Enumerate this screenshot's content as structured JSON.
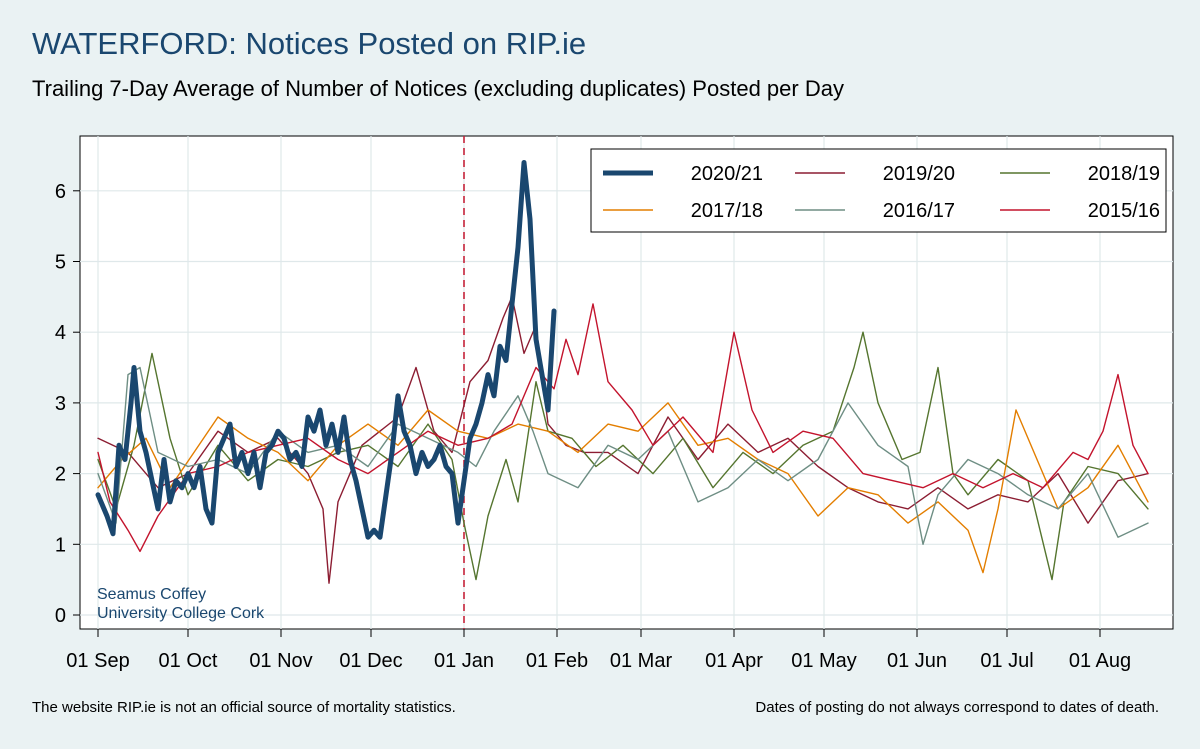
{
  "header": {
    "title": "WATERFORD: Notices Posted on RIP.ie",
    "subtitle": "Trailing 7-Day Average of Number of Notices (excluding duplicates) Posted per Day"
  },
  "footer": {
    "left": "The website RIP.ie is not an official source of mortality statistics.",
    "right": "Dates of posting do not always correspond to dates of death."
  },
  "colors": {
    "background": "#eaf2f3",
    "plot_background": "#ffffff",
    "grid": "#dfe8ea",
    "reference_line": "#c3142d"
  },
  "chart_data": {
    "type": "line",
    "title": "WATERFORD: Notices Posted on RIP.ie",
    "subtitle": "Trailing 7-Day Average of Number of Notices (excluding duplicates) Posted per Day",
    "xlabel": "",
    "ylabel": "",
    "ylim": [
      0,
      6.6
    ],
    "yticks": [
      0,
      1,
      2,
      3,
      4,
      5,
      6
    ],
    "x_tick_labels": [
      "01 Sep",
      "01 Oct",
      "01 Nov",
      "01 Dec",
      "01 Jan",
      "01 Feb",
      "01 Mar",
      "01 Apr",
      "01 May",
      "01 Jun",
      "01 Jul",
      "01 Aug"
    ],
    "x_tick_days": [
      0,
      30,
      61,
      91,
      122,
      153,
      181,
      212,
      242,
      273,
      303,
      334
    ],
    "x_range_days": [
      0,
      354
    ],
    "grid": true,
    "reference_line": {
      "day": 122,
      "style": "dashed"
    },
    "legend": {
      "placement": "top-right",
      "columns": 3
    },
    "annotation": [
      "Seamus Coffey",
      "University College Cork"
    ],
    "series": [
      {
        "name": "2020/21",
        "color": "#1a476f",
        "emphasis": true,
        "points": [
          [
            0,
            1.7
          ],
          [
            3,
            1.4
          ],
          [
            5,
            1.15
          ],
          [
            7,
            2.4
          ],
          [
            9,
            2.2
          ],
          [
            11,
            3.0
          ],
          [
            12,
            3.5
          ],
          [
            14,
            2.6
          ],
          [
            16,
            2.3
          ],
          [
            18,
            1.9
          ],
          [
            20,
            1.5
          ],
          [
            22,
            2.2
          ],
          [
            24,
            1.6
          ],
          [
            26,
            1.9
          ],
          [
            28,
            1.8
          ],
          [
            30,
            2.0
          ],
          [
            32,
            1.8
          ],
          [
            34,
            2.1
          ],
          [
            36,
            1.5
          ],
          [
            38,
            1.3
          ],
          [
            40,
            2.3
          ],
          [
            42,
            2.5
          ],
          [
            44,
            2.7
          ],
          [
            46,
            2.1
          ],
          [
            48,
            2.3
          ],
          [
            50,
            2.0
          ],
          [
            52,
            2.3
          ],
          [
            54,
            1.8
          ],
          [
            56,
            2.3
          ],
          [
            58,
            2.4
          ],
          [
            60,
            2.6
          ],
          [
            62,
            2.5
          ],
          [
            64,
            2.2
          ],
          [
            66,
            2.3
          ],
          [
            68,
            2.1
          ],
          [
            70,
            2.8
          ],
          [
            72,
            2.6
          ],
          [
            74,
            2.9
          ],
          [
            76,
            2.4
          ],
          [
            78,
            2.7
          ],
          [
            80,
            2.3
          ],
          [
            82,
            2.8
          ],
          [
            84,
            2.2
          ],
          [
            86,
            1.9
          ],
          [
            88,
            1.5
          ],
          [
            90,
            1.1
          ],
          [
            92,
            1.2
          ],
          [
            94,
            1.1
          ],
          [
            96,
            1.7
          ],
          [
            98,
            2.3
          ],
          [
            100,
            3.1
          ],
          [
            102,
            2.6
          ],
          [
            104,
            2.4
          ],
          [
            106,
            2.0
          ],
          [
            108,
            2.3
          ],
          [
            110,
            2.1
          ],
          [
            112,
            2.2
          ],
          [
            114,
            2.4
          ],
          [
            116,
            2.1
          ],
          [
            118,
            2.0
          ],
          [
            120,
            1.3
          ],
          [
            122,
            1.9
          ],
          [
            124,
            2.5
          ],
          [
            126,
            2.7
          ],
          [
            128,
            3.0
          ],
          [
            130,
            3.4
          ],
          [
            132,
            3.1
          ],
          [
            134,
            3.8
          ],
          [
            136,
            3.6
          ],
          [
            138,
            4.4
          ],
          [
            140,
            5.2
          ],
          [
            142,
            6.4
          ],
          [
            144,
            5.6
          ],
          [
            146,
            3.9
          ],
          [
            148,
            3.4
          ],
          [
            150,
            2.9
          ],
          [
            152,
            4.3
          ]
        ]
      },
      {
        "name": "2019/20",
        "color": "#8c1d32",
        "points": [
          [
            0,
            2.5
          ],
          [
            10,
            2.3
          ],
          [
            20,
            1.8
          ],
          [
            30,
            2.0
          ],
          [
            40,
            2.6
          ],
          [
            50,
            2.3
          ],
          [
            60,
            2.5
          ],
          [
            70,
            2.0
          ],
          [
            75,
            1.5
          ],
          [
            77,
            0.45
          ],
          [
            80,
            1.6
          ],
          [
            88,
            2.4
          ],
          [
            100,
            2.8
          ],
          [
            106,
            3.5
          ],
          [
            112,
            2.6
          ],
          [
            118,
            2.3
          ],
          [
            124,
            3.3
          ],
          [
            130,
            3.6
          ],
          [
            135,
            4.2
          ],
          [
            138,
            4.5
          ],
          [
            142,
            3.7
          ],
          [
            146,
            4.1
          ],
          [
            150,
            2.7
          ],
          [
            156,
            2.4
          ],
          [
            162,
            2.3
          ],
          [
            170,
            2.3
          ],
          [
            180,
            2.0
          ],
          [
            190,
            2.8
          ],
          [
            200,
            2.2
          ],
          [
            210,
            2.7
          ],
          [
            220,
            2.3
          ],
          [
            230,
            2.5
          ],
          [
            240,
            2.1
          ],
          [
            250,
            1.8
          ],
          [
            260,
            1.6
          ],
          [
            270,
            1.5
          ],
          [
            280,
            1.8
          ],
          [
            290,
            1.5
          ],
          [
            300,
            1.7
          ],
          [
            310,
            1.6
          ],
          [
            320,
            2.0
          ],
          [
            330,
            1.3
          ],
          [
            340,
            1.9
          ],
          [
            350,
            2.0
          ]
        ]
      },
      {
        "name": "2018/19",
        "color": "#55752f",
        "points": [
          [
            0,
            2.2
          ],
          [
            6,
            1.5
          ],
          [
            12,
            2.4
          ],
          [
            18,
            3.7
          ],
          [
            24,
            2.5
          ],
          [
            30,
            1.7
          ],
          [
            40,
            2.4
          ],
          [
            50,
            1.9
          ],
          [
            60,
            2.2
          ],
          [
            70,
            2.1
          ],
          [
            80,
            2.3
          ],
          [
            90,
            2.4
          ],
          [
            100,
            2.1
          ],
          [
            110,
            2.7
          ],
          [
            118,
            2.2
          ],
          [
            122,
            1.3
          ],
          [
            126,
            0.5
          ],
          [
            130,
            1.4
          ],
          [
            136,
            2.2
          ],
          [
            140,
            1.6
          ],
          [
            146,
            3.3
          ],
          [
            150,
            2.6
          ],
          [
            158,
            2.5
          ],
          [
            166,
            2.1
          ],
          [
            175,
            2.4
          ],
          [
            185,
            2.0
          ],
          [
            195,
            2.5
          ],
          [
            205,
            1.8
          ],
          [
            215,
            2.3
          ],
          [
            225,
            2.0
          ],
          [
            235,
            2.4
          ],
          [
            245,
            2.6
          ],
          [
            252,
            3.5
          ],
          [
            255,
            4.0
          ],
          [
            260,
            3.0
          ],
          [
            268,
            2.2
          ],
          [
            274,
            2.3
          ],
          [
            280,
            3.5
          ],
          [
            285,
            2.0
          ],
          [
            290,
            1.7
          ],
          [
            300,
            2.2
          ],
          [
            310,
            1.9
          ],
          [
            318,
            0.5
          ],
          [
            322,
            1.6
          ],
          [
            330,
            2.1
          ],
          [
            340,
            2.0
          ],
          [
            350,
            1.5
          ]
        ]
      },
      {
        "name": "2017/18",
        "color": "#e37e00",
        "points": [
          [
            0,
            1.8
          ],
          [
            8,
            2.2
          ],
          [
            16,
            2.5
          ],
          [
            24,
            1.8
          ],
          [
            32,
            2.3
          ],
          [
            40,
            2.8
          ],
          [
            50,
            2.5
          ],
          [
            60,
            2.3
          ],
          [
            70,
            1.9
          ],
          [
            80,
            2.4
          ],
          [
            90,
            2.7
          ],
          [
            100,
            2.4
          ],
          [
            110,
            2.9
          ],
          [
            120,
            2.6
          ],
          [
            130,
            2.5
          ],
          [
            140,
            2.7
          ],
          [
            150,
            2.6
          ],
          [
            160,
            2.3
          ],
          [
            170,
            2.7
          ],
          [
            180,
            2.6
          ],
          [
            190,
            3.0
          ],
          [
            200,
            2.4
          ],
          [
            210,
            2.5
          ],
          [
            220,
            2.2
          ],
          [
            230,
            2.0
          ],
          [
            240,
            1.4
          ],
          [
            250,
            1.8
          ],
          [
            260,
            1.7
          ],
          [
            270,
            1.3
          ],
          [
            280,
            1.6
          ],
          [
            290,
            1.2
          ],
          [
            295,
            0.6
          ],
          [
            300,
            1.5
          ],
          [
            306,
            2.9
          ],
          [
            312,
            2.3
          ],
          [
            320,
            1.5
          ],
          [
            330,
            1.8
          ],
          [
            340,
            2.4
          ],
          [
            350,
            1.6
          ]
        ]
      },
      {
        "name": "2016/17",
        "color": "#6e8e84",
        "points": [
          [
            0,
            2.0
          ],
          [
            6,
            1.3
          ],
          [
            10,
            3.4
          ],
          [
            14,
            3.5
          ],
          [
            20,
            2.3
          ],
          [
            30,
            2.1
          ],
          [
            40,
            2.2
          ],
          [
            50,
            2.0
          ],
          [
            60,
            2.6
          ],
          [
            70,
            2.3
          ],
          [
            80,
            2.4
          ],
          [
            90,
            2.1
          ],
          [
            100,
            2.7
          ],
          [
            110,
            2.5
          ],
          [
            120,
            2.3
          ],
          [
            126,
            2.1
          ],
          [
            132,
            2.6
          ],
          [
            140,
            3.1
          ],
          [
            145,
            2.6
          ],
          [
            150,
            2.0
          ],
          [
            160,
            1.8
          ],
          [
            170,
            2.4
          ],
          [
            180,
            2.2
          ],
          [
            190,
            2.6
          ],
          [
            200,
            1.6
          ],
          [
            210,
            1.8
          ],
          [
            220,
            2.2
          ],
          [
            230,
            1.9
          ],
          [
            240,
            2.2
          ],
          [
            250,
            3.0
          ],
          [
            260,
            2.4
          ],
          [
            270,
            2.1
          ],
          [
            275,
            1.0
          ],
          [
            280,
            1.7
          ],
          [
            290,
            2.2
          ],
          [
            300,
            2.0
          ],
          [
            310,
            1.7
          ],
          [
            320,
            1.5
          ],
          [
            330,
            2.0
          ],
          [
            340,
            1.1
          ],
          [
            350,
            1.3
          ]
        ]
      },
      {
        "name": "2015/16",
        "color": "#c3142d",
        "points": [
          [
            0,
            2.3
          ],
          [
            4,
            1.6
          ],
          [
            10,
            1.2
          ],
          [
            14,
            0.9
          ],
          [
            20,
            1.4
          ],
          [
            30,
            2.0
          ],
          [
            40,
            2.1
          ],
          [
            50,
            2.3
          ],
          [
            60,
            2.4
          ],
          [
            70,
            2.5
          ],
          [
            80,
            2.2
          ],
          [
            90,
            2.0
          ],
          [
            100,
            2.3
          ],
          [
            110,
            2.6
          ],
          [
            120,
            2.4
          ],
          [
            130,
            2.5
          ],
          [
            138,
            2.7
          ],
          [
            146,
            3.5
          ],
          [
            152,
            3.2
          ],
          [
            156,
            3.9
          ],
          [
            160,
            3.4
          ],
          [
            165,
            4.4
          ],
          [
            170,
            3.3
          ],
          [
            178,
            2.9
          ],
          [
            185,
            2.4
          ],
          [
            195,
            2.8
          ],
          [
            205,
            2.3
          ],
          [
            212,
            4.0
          ],
          [
            218,
            2.9
          ],
          [
            225,
            2.3
          ],
          [
            235,
            2.6
          ],
          [
            245,
            2.5
          ],
          [
            255,
            2.0
          ],
          [
            265,
            1.9
          ],
          [
            275,
            1.8
          ],
          [
            285,
            2.0
          ],
          [
            295,
            1.8
          ],
          [
            305,
            2.0
          ],
          [
            315,
            1.8
          ],
          [
            325,
            2.3
          ],
          [
            330,
            2.2
          ],
          [
            335,
            2.6
          ],
          [
            340,
            3.4
          ],
          [
            345,
            2.4
          ],
          [
            350,
            2.0
          ]
        ]
      }
    ]
  }
}
